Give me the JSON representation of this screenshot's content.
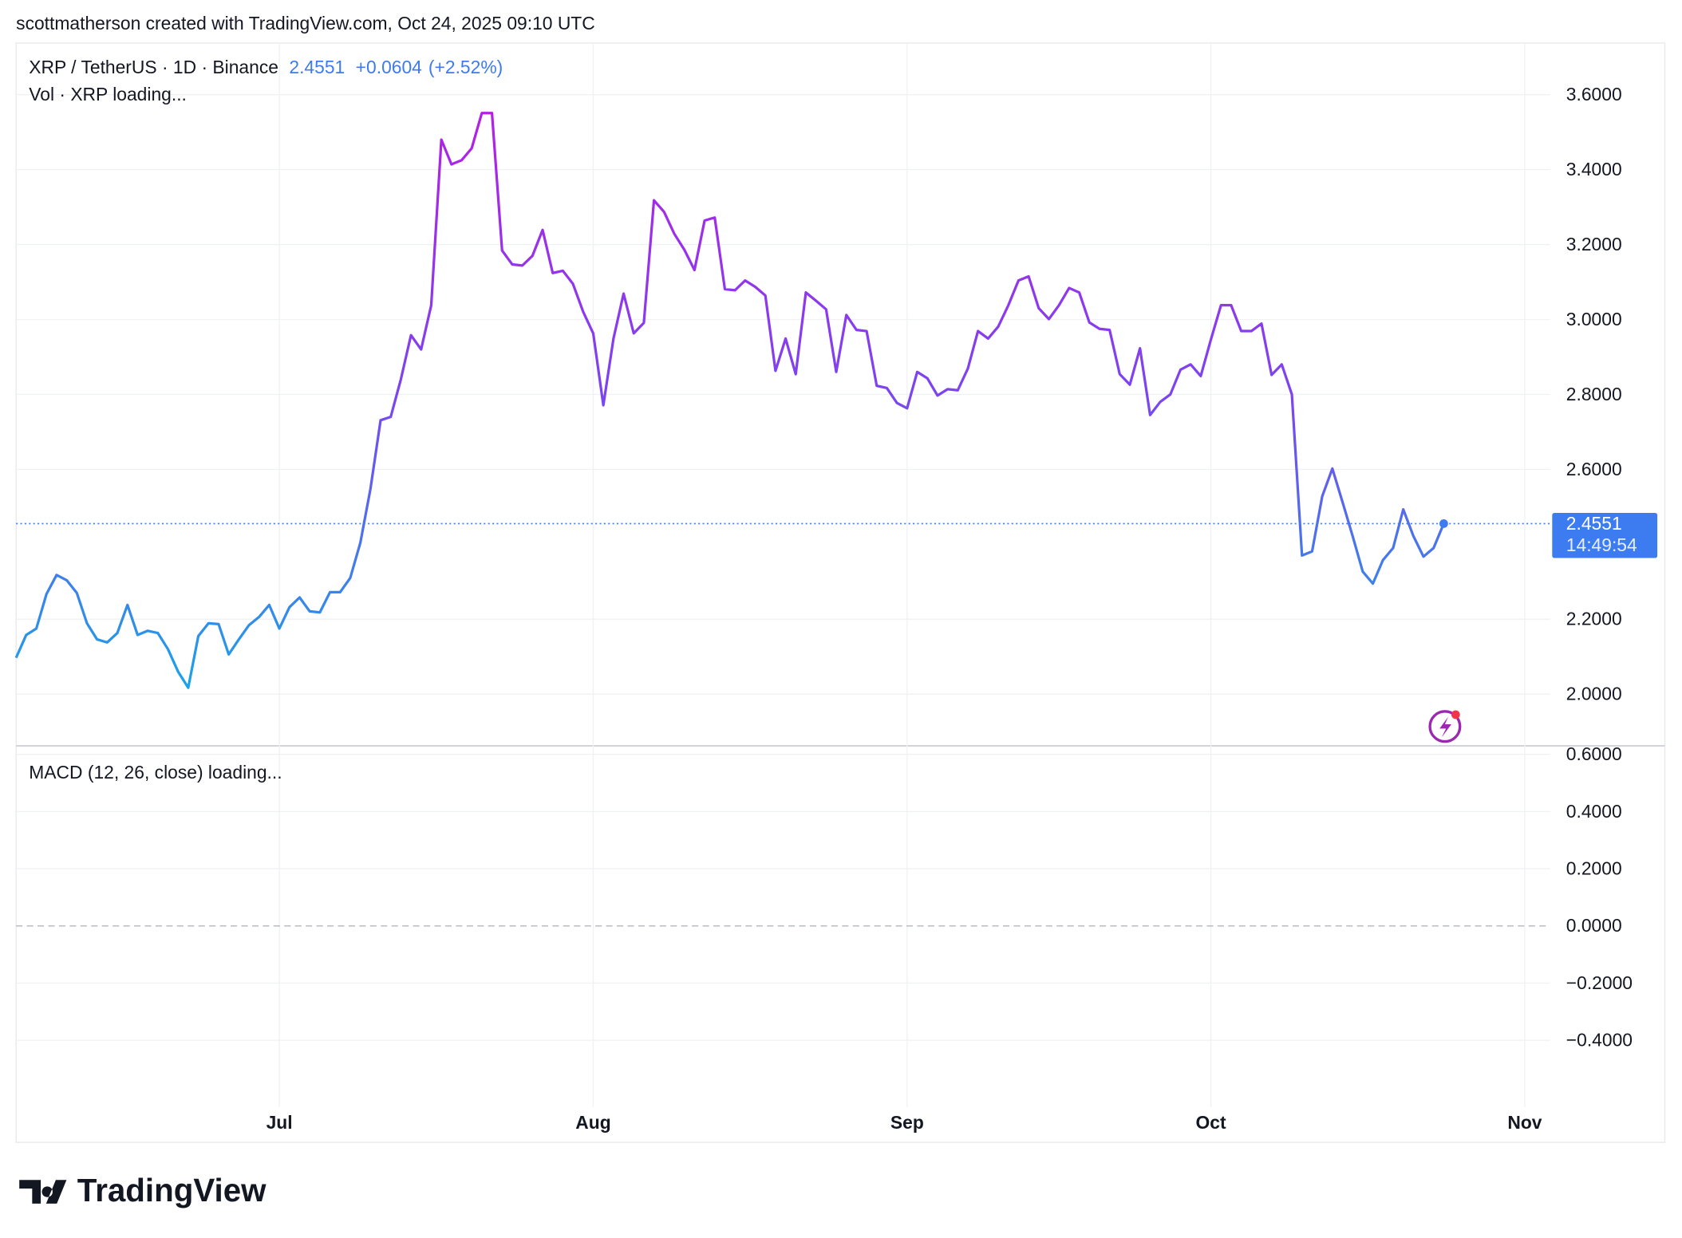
{
  "header": {
    "credit": "scottmatherson created with TradingView.com, Oct 24, 2025 09:10 UTC"
  },
  "legend": {
    "symbol": "XRP / TetherUS · 1D · Binance",
    "price": "2.4551",
    "change": "+0.0604",
    "change_pct": "(+2.52%)",
    "volume": "Vol · XRP loading...",
    "macd": "MACD (12, 26, close) loading..."
  },
  "price_tag": {
    "countdown": "14:49:54"
  },
  "footer": {
    "logo": "TradingView"
  },
  "chart_data": [
    {
      "type": "line",
      "x": [
        -26,
        -25,
        -24,
        -23,
        -22,
        -21,
        -20,
        -19,
        -18,
        -17,
        -16,
        -15,
        -14,
        -13,
        -12,
        -11,
        -10,
        -9,
        -8,
        -7,
        -6,
        -5,
        -4,
        -3,
        -2,
        -1,
        0,
        1,
        2,
        3,
        4,
        5,
        6,
        7,
        8,
        9,
        10,
        11,
        12,
        13,
        14,
        15,
        16,
        17,
        18,
        19,
        20,
        21,
        22,
        23,
        24,
        25,
        26,
        27,
        28,
        29,
        30,
        31,
        32,
        33,
        34,
        35,
        36,
        37,
        38,
        39,
        40,
        41,
        42,
        43,
        44,
        45,
        46,
        47,
        48,
        49,
        50,
        51,
        52,
        53,
        54,
        55,
        56,
        57,
        58,
        59,
        60,
        61,
        62,
        63,
        64,
        65,
        66,
        67,
        68,
        69,
        70,
        71,
        72,
        73,
        74,
        75,
        76,
        77,
        78,
        79,
        80,
        81,
        82,
        83,
        84,
        85,
        86,
        87,
        88,
        89,
        90,
        91,
        92,
        93,
        94,
        95,
        96,
        97,
        98,
        99,
        100,
        101,
        102,
        103,
        104,
        105,
        106,
        107,
        108,
        109,
        110,
        111,
        112,
        113,
        114,
        115
      ],
      "series": [
        {
          "name": "XRP / TetherUS",
          "gradient": [
            "#b41fe6",
            "#7b45f0",
            "#1aa3e8"
          ],
          "values": [
            2.097,
            2.158,
            2.175,
            2.267,
            2.318,
            2.304,
            2.27,
            2.189,
            2.146,
            2.138,
            2.163,
            2.238,
            2.158,
            2.169,
            2.163,
            2.12,
            2.06,
            2.017,
            2.155,
            2.189,
            2.187,
            2.106,
            2.146,
            2.184,
            2.206,
            2.238,
            2.175,
            2.232,
            2.258,
            2.221,
            2.218,
            2.272,
            2.272,
            2.31,
            2.404,
            2.548,
            2.731,
            2.74,
            2.84,
            2.958,
            2.92,
            3.038,
            3.48,
            3.414,
            3.425,
            3.457,
            3.551,
            3.551,
            3.184,
            3.147,
            3.144,
            3.17,
            3.239,
            3.124,
            3.13,
            3.095,
            3.021,
            2.963,
            2.771,
            2.949,
            3.069,
            2.963,
            2.991,
            3.318,
            3.287,
            3.229,
            3.186,
            3.132,
            3.264,
            3.272,
            3.081,
            3.078,
            3.104,
            3.087,
            3.064,
            2.863,
            2.949,
            2.854,
            3.072,
            3.05,
            3.027,
            2.86,
            3.012,
            2.972,
            2.969,
            2.823,
            2.817,
            2.777,
            2.763,
            2.86,
            2.843,
            2.797,
            2.814,
            2.811,
            2.869,
            2.969,
            2.949,
            2.981,
            3.038,
            3.104,
            3.115,
            3.03,
            3.001,
            3.038,
            3.084,
            3.072,
            2.992,
            2.975,
            2.972,
            2.854,
            2.826,
            2.923,
            2.745,
            2.78,
            2.8,
            2.866,
            2.88,
            2.849,
            2.946,
            3.038,
            3.038,
            2.969,
            2.969,
            2.989,
            2.852,
            2.88,
            2.8,
            2.37,
            2.381,
            2.528,
            2.602,
            2.513,
            2.422,
            2.327,
            2.295,
            2.358,
            2.39,
            2.493,
            2.422,
            2.367,
            2.39,
            2.4551
          ]
        }
      ],
      "last_price": 2.4551,
      "last_color": "#3d7bf0",
      "xlim": [
        -26,
        125.5
      ],
      "xticks": [
        {
          "value": 0,
          "label": "Jul"
        },
        {
          "value": 31,
          "label": "Aug"
        },
        {
          "value": 62,
          "label": "Sep"
        },
        {
          "value": 92,
          "label": "Oct"
        },
        {
          "value": 123,
          "label": "Nov"
        }
      ],
      "ylim": [
        1.862,
        3.738
      ],
      "yticks": [
        {
          "value": 2.0,
          "label": "2.0000"
        },
        {
          "value": 2.2,
          "label": "2.2000"
        },
        {
          "value": 2.6,
          "label": "2.6000"
        },
        {
          "value": 2.8,
          "label": "2.8000"
        },
        {
          "value": 3.0,
          "label": "3.0000"
        },
        {
          "value": 3.2,
          "label": "3.2000"
        },
        {
          "value": 3.4,
          "label": "3.4000"
        },
        {
          "value": 3.6,
          "label": "3.6000"
        }
      ],
      "grid": true
    },
    {
      "type": "empty",
      "ylim": [
        -0.633,
        0.63
      ],
      "yticks": [
        {
          "value": -0.4,
          "label": "−0.4000"
        },
        {
          "value": -0.2,
          "label": "−0.2000"
        },
        {
          "value": 0,
          "label": "0.0000"
        },
        {
          "value": 0.2,
          "label": "0.2000"
        },
        {
          "value": 0.4,
          "label": "0.4000"
        },
        {
          "value": 0.6,
          "label": "0.6000"
        }
      ],
      "grid": true
    }
  ]
}
